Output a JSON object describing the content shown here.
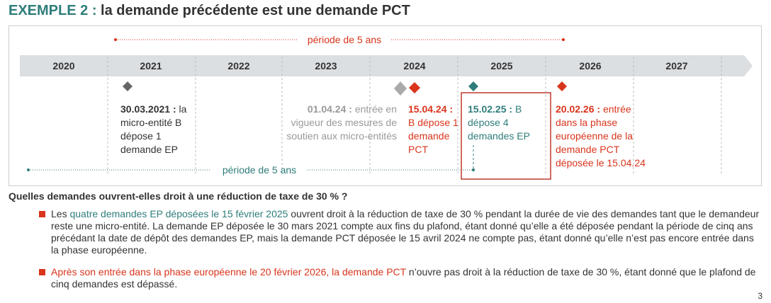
{
  "header": {
    "title_lead": "EXEMPLE 2 :",
    "title_rest": "la demande précédente est une demande PCT"
  },
  "timeline": {
    "years": [
      "2020",
      "2021",
      "2022",
      "2023",
      "2024",
      "2025",
      "2026",
      "2027"
    ],
    "top_range": "période de 5 ans",
    "bottom_range": "période de 5 ans",
    "events": [
      {
        "date": "30.03.2021 :",
        "text": "la micro-entité B dépose 1 demande EP"
      },
      {
        "date": "01.04.24 :",
        "text": "entrée en vigueur des mesures de soutien aux micro-entités"
      },
      {
        "date": "15.04.24 :",
        "text": "B dépose 1 demande PCT"
      },
      {
        "date": "15.02.25 :",
        "text": "B dépose 4 demandes EP"
      },
      {
        "date": "20.02.26 :",
        "text": "entrée dans la phase européenne de la demande PCT déposée le 15.04.24"
      }
    ]
  },
  "question": "Quelles demandes ouvrent-elles droit à une réduction de taxe de 30 % ?",
  "bullets": [
    [
      "Les",
      "quatre demandes EP déposées le 15 février 2025",
      "ouvrent droit à la réduction de taxe de 30 % pendant la durée de vie des demandes tant que le demandeur reste une micro-entité. La demande EP déposée le 30 mars 2021 compte aux fins du plafond, étant donné qu’elle a été déposée pendant la période de cinq ans précédant la date de dépôt des demandes EP, mais la demande PCT déposée le 15 avril 2024 ne compte pas, étant donné qu’elle n’est pas encore entrée dans la phase européenne."
    ],
    [
      "Après son entrée dans la phase européenne le 20 février 2026, la demande PCT",
      "n’ouvre pas droit à la réduction de taxe de 30 %, étant donné que le plafond de cinq demandes est dépassé."
    ]
  ],
  "page_number": "3"
}
